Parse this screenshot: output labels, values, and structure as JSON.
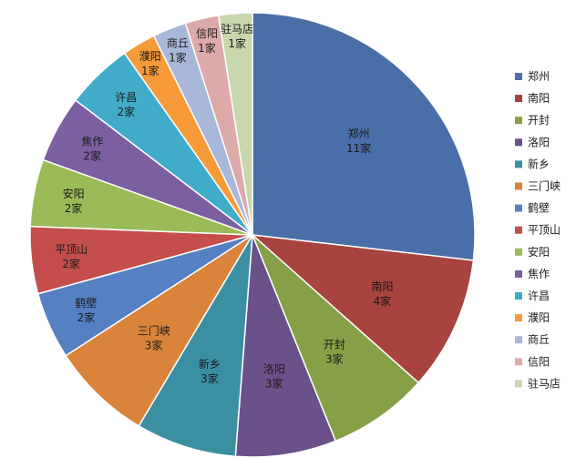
{
  "chart_data": {
    "type": "pie",
    "title": "",
    "unit": "家",
    "legend_position": "right",
    "slices": [
      {
        "name": "郑州",
        "value": 11,
        "label": "11家",
        "color": "#4A6FA8"
      },
      {
        "name": "南阳",
        "value": 4,
        "label": "4家",
        "color": "#A8433F"
      },
      {
        "name": "开封",
        "value": 3,
        "label": "3家",
        "color": "#86A047"
      },
      {
        "name": "洛阳",
        "value": 3,
        "label": "3家",
        "color": "#6B5189"
      },
      {
        "name": "新乡",
        "value": 3,
        "label": "3家",
        "color": "#3A8FA2"
      },
      {
        "name": "三门峡",
        "value": 3,
        "label": "3家",
        "color": "#D9843A"
      },
      {
        "name": "鹤壁",
        "value": 2,
        "label": "2家",
        "color": "#5580C2"
      },
      {
        "name": "平顶山",
        "value": 2,
        "label": "2家",
        "color": "#C44E4B"
      },
      {
        "name": "安阳",
        "value": 2,
        "label": "2家",
        "color": "#9BBB59"
      },
      {
        "name": "焦作",
        "value": 2,
        "label": "2家",
        "color": "#7B5FA0"
      },
      {
        "name": "许昌",
        "value": 2,
        "label": "2家",
        "color": "#41ACC9"
      },
      {
        "name": "濮阳",
        "value": 1,
        "label": "1家",
        "color": "#F79A3A"
      },
      {
        "name": "商丘",
        "value": 1,
        "label": "1家",
        "color": "#A9B8D8"
      },
      {
        "name": "信阳",
        "value": 1,
        "label": "1家",
        "color": "#DDAAAA"
      },
      {
        "name": "驻马店",
        "value": 1,
        "label": "1家",
        "color": "#C9D7AE"
      }
    ]
  }
}
